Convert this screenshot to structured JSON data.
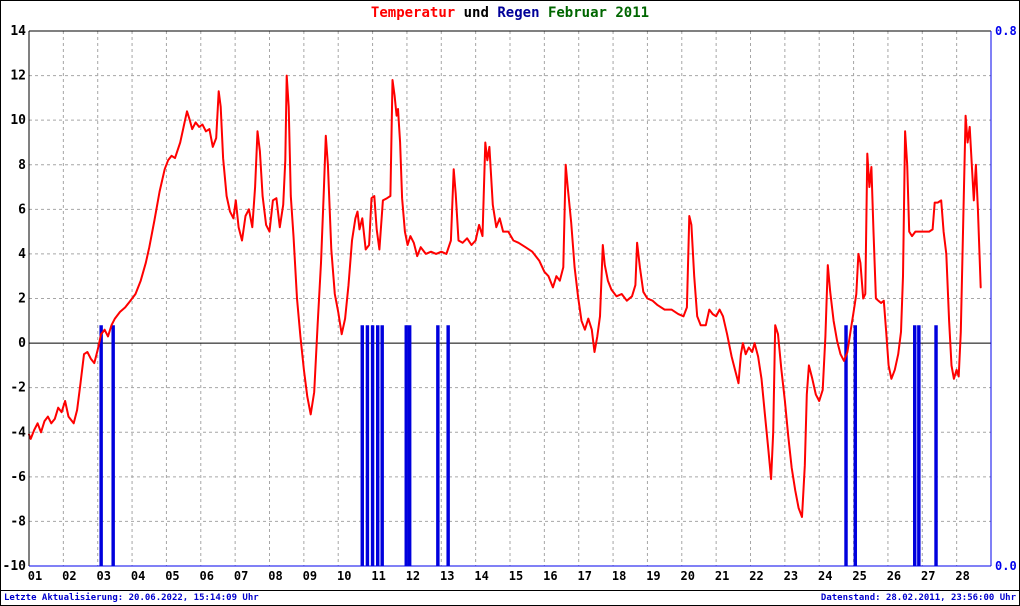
{
  "title": {
    "full": "Temperatur und Regen Februar 2011",
    "parts": [
      {
        "text": "Temperatur",
        "color": "#ff0000"
      },
      {
        "text": " und ",
        "color": "#000000"
      },
      {
        "text": "Regen",
        "color": "#000099"
      },
      {
        "text": " Februar 2011",
        "color": "#006600"
      }
    ]
  },
  "footer": {
    "left": "Letzte Aktualisierung: 20.06.2022, 15:14:09 Uhr",
    "right": "Datenstand: 28.02.2011, 23:56:00 Uhr"
  },
  "colors": {
    "temperature_line": "#ff0000",
    "rain_bar": "#0000dd",
    "grid": "#a6a6a6",
    "axis_left_top": "#000000",
    "axis_right_bottom": "#0000ee",
    "right_axis_labels": "#0000ee",
    "footer_text": "#0000cc",
    "zero_line": "#000000"
  },
  "chart_data": {
    "type": "line+bar",
    "title": "Temperatur und Regen Februar 2011",
    "grid": true,
    "legend": "none",
    "x_axis": {
      "label": "",
      "range": [
        1,
        29
      ],
      "ticks": [
        "01",
        "02",
        "03",
        "04",
        "05",
        "06",
        "07",
        "08",
        "09",
        "10",
        "11",
        "12",
        "13",
        "14",
        "15",
        "16",
        "17",
        "18",
        "19",
        "20",
        "21",
        "22",
        "23",
        "24",
        "25",
        "26",
        "27",
        "28"
      ]
    },
    "y_left": {
      "label": "Temperatur",
      "min": -10,
      "max": 14,
      "tick_step": 2,
      "color": "#000000"
    },
    "y_right": {
      "label": "Regen",
      "min": 0,
      "max": 0.8,
      "color": "#0000ee",
      "labels": [
        {
          "value": 0.8,
          "text": "0.8"
        },
        {
          "value": 0.0,
          "text": "0.0"
        }
      ]
    },
    "series": [
      {
        "name": "Temperatur",
        "type": "line",
        "color": "#ff0000",
        "points": [
          [
            1.0,
            -4.1
          ],
          [
            1.05,
            -4.3
          ],
          [
            1.15,
            -3.9
          ],
          [
            1.25,
            -3.6
          ],
          [
            1.35,
            -4.0
          ],
          [
            1.45,
            -3.5
          ],
          [
            1.55,
            -3.3
          ],
          [
            1.65,
            -3.6
          ],
          [
            1.75,
            -3.4
          ],
          [
            1.85,
            -2.9
          ],
          [
            1.95,
            -3.1
          ],
          [
            2.05,
            -2.6
          ],
          [
            2.15,
            -3.3
          ],
          [
            2.3,
            -3.6
          ],
          [
            2.4,
            -3.0
          ],
          [
            2.5,
            -1.8
          ],
          [
            2.6,
            -0.5
          ],
          [
            2.7,
            -0.4
          ],
          [
            2.8,
            -0.7
          ],
          [
            2.9,
            -0.9
          ],
          [
            3.0,
            -0.3
          ],
          [
            3.1,
            0.4
          ],
          [
            3.2,
            0.6
          ],
          [
            3.3,
            0.3
          ],
          [
            3.4,
            0.8
          ],
          [
            3.5,
            1.1
          ],
          [
            3.65,
            1.4
          ],
          [
            3.8,
            1.6
          ],
          [
            3.95,
            1.9
          ],
          [
            4.1,
            2.2
          ],
          [
            4.25,
            2.8
          ],
          [
            4.4,
            3.6
          ],
          [
            4.5,
            4.3
          ],
          [
            4.65,
            5.5
          ],
          [
            4.8,
            6.8
          ],
          [
            4.95,
            7.8
          ],
          [
            5.05,
            8.2
          ],
          [
            5.15,
            8.4
          ],
          [
            5.25,
            8.3
          ],
          [
            5.4,
            9.0
          ],
          [
            5.5,
            9.7
          ],
          [
            5.6,
            10.4
          ],
          [
            5.68,
            10.0
          ],
          [
            5.75,
            9.6
          ],
          [
            5.85,
            9.9
          ],
          [
            5.95,
            9.7
          ],
          [
            6.05,
            9.8
          ],
          [
            6.15,
            9.5
          ],
          [
            6.25,
            9.6
          ],
          [
            6.35,
            8.8
          ],
          [
            6.45,
            9.2
          ],
          [
            6.52,
            11.3
          ],
          [
            6.58,
            10.6
          ],
          [
            6.65,
            8.3
          ],
          [
            6.75,
            6.6
          ],
          [
            6.85,
            5.9
          ],
          [
            6.95,
            5.6
          ],
          [
            7.02,
            6.4
          ],
          [
            7.1,
            5.2
          ],
          [
            7.2,
            4.6
          ],
          [
            7.3,
            5.7
          ],
          [
            7.4,
            6.0
          ],
          [
            7.5,
            5.2
          ],
          [
            7.58,
            7.0
          ],
          [
            7.65,
            9.5
          ],
          [
            7.72,
            8.6
          ],
          [
            7.8,
            6.6
          ],
          [
            7.9,
            5.3
          ],
          [
            8.0,
            5.0
          ],
          [
            8.1,
            6.4
          ],
          [
            8.2,
            6.5
          ],
          [
            8.3,
            5.2
          ],
          [
            8.4,
            6.2
          ],
          [
            8.46,
            8.2
          ],
          [
            8.5,
            12.0
          ],
          [
            8.56,
            10.6
          ],
          [
            8.62,
            6.6
          ],
          [
            8.7,
            4.8
          ],
          [
            8.8,
            2.0
          ],
          [
            8.9,
            0.3
          ],
          [
            9.0,
            -1.2
          ],
          [
            9.1,
            -2.4
          ],
          [
            9.2,
            -3.2
          ],
          [
            9.3,
            -2.2
          ],
          [
            9.4,
            0.8
          ],
          [
            9.5,
            3.6
          ],
          [
            9.58,
            6.8
          ],
          [
            9.64,
            9.3
          ],
          [
            9.7,
            8.0
          ],
          [
            9.8,
            4.2
          ],
          [
            9.9,
            2.2
          ],
          [
            10.0,
            1.4
          ],
          [
            10.1,
            0.4
          ],
          [
            10.2,
            1.1
          ],
          [
            10.3,
            2.6
          ],
          [
            10.4,
            4.6
          ],
          [
            10.5,
            5.6
          ],
          [
            10.56,
            5.9
          ],
          [
            10.62,
            5.1
          ],
          [
            10.7,
            5.6
          ],
          [
            10.8,
            4.2
          ],
          [
            10.9,
            4.4
          ],
          [
            10.97,
            6.5
          ],
          [
            11.05,
            6.6
          ],
          [
            11.12,
            5.1
          ],
          [
            11.2,
            4.2
          ],
          [
            11.3,
            6.4
          ],
          [
            11.42,
            6.5
          ],
          [
            11.52,
            6.6
          ],
          [
            11.58,
            11.8
          ],
          [
            11.64,
            11.1
          ],
          [
            11.7,
            10.2
          ],
          [
            11.74,
            10.5
          ],
          [
            11.8,
            9.0
          ],
          [
            11.86,
            6.5
          ],
          [
            11.94,
            5.0
          ],
          [
            12.02,
            4.4
          ],
          [
            12.1,
            4.8
          ],
          [
            12.2,
            4.5
          ],
          [
            12.3,
            3.9
          ],
          [
            12.4,
            4.3
          ],
          [
            12.55,
            4.0
          ],
          [
            12.7,
            4.1
          ],
          [
            12.85,
            4.0
          ],
          [
            13.0,
            4.1
          ],
          [
            13.15,
            4.0
          ],
          [
            13.28,
            4.6
          ],
          [
            13.36,
            7.8
          ],
          [
            13.42,
            6.7
          ],
          [
            13.5,
            4.6
          ],
          [
            13.62,
            4.5
          ],
          [
            13.75,
            4.7
          ],
          [
            13.88,
            4.4
          ],
          [
            14.0,
            4.6
          ],
          [
            14.1,
            5.3
          ],
          [
            14.2,
            4.8
          ],
          [
            14.28,
            9.0
          ],
          [
            14.34,
            8.2
          ],
          [
            14.4,
            8.8
          ],
          [
            14.5,
            6.2
          ],
          [
            14.6,
            5.2
          ],
          [
            14.7,
            5.6
          ],
          [
            14.8,
            5.0
          ],
          [
            14.95,
            5.0
          ],
          [
            15.1,
            4.6
          ],
          [
            15.25,
            4.5
          ],
          [
            15.45,
            4.3
          ],
          [
            15.65,
            4.1
          ],
          [
            15.85,
            3.7
          ],
          [
            16.0,
            3.2
          ],
          [
            16.12,
            3.0
          ],
          [
            16.25,
            2.5
          ],
          [
            16.35,
            3.0
          ],
          [
            16.45,
            2.8
          ],
          [
            16.55,
            3.4
          ],
          [
            16.62,
            8.0
          ],
          [
            16.68,
            7.0
          ],
          [
            16.78,
            5.4
          ],
          [
            16.88,
            3.4
          ],
          [
            16.98,
            2.1
          ],
          [
            17.08,
            1.0
          ],
          [
            17.18,
            0.6
          ],
          [
            17.28,
            1.1
          ],
          [
            17.38,
            0.6
          ],
          [
            17.46,
            -0.4
          ],
          [
            17.54,
            0.3
          ],
          [
            17.62,
            1.2
          ],
          [
            17.7,
            4.4
          ],
          [
            17.76,
            3.5
          ],
          [
            17.85,
            2.8
          ],
          [
            17.95,
            2.4
          ],
          [
            18.1,
            2.1
          ],
          [
            18.25,
            2.2
          ],
          [
            18.4,
            1.9
          ],
          [
            18.55,
            2.1
          ],
          [
            18.65,
            2.6
          ],
          [
            18.7,
            4.5
          ],
          [
            18.78,
            3.4
          ],
          [
            18.88,
            2.3
          ],
          [
            19.0,
            2.0
          ],
          [
            19.15,
            1.9
          ],
          [
            19.3,
            1.7
          ],
          [
            19.5,
            1.5
          ],
          [
            19.7,
            1.5
          ],
          [
            19.9,
            1.3
          ],
          [
            20.05,
            1.2
          ],
          [
            20.15,
            1.6
          ],
          [
            20.22,
            5.7
          ],
          [
            20.28,
            5.3
          ],
          [
            20.36,
            3.0
          ],
          [
            20.45,
            1.2
          ],
          [
            20.55,
            0.8
          ],
          [
            20.7,
            0.8
          ],
          [
            20.8,
            1.5
          ],
          [
            20.9,
            1.3
          ],
          [
            21.0,
            1.2
          ],
          [
            21.1,
            1.5
          ],
          [
            21.2,
            1.2
          ],
          [
            21.32,
            0.4
          ],
          [
            21.45,
            -0.6
          ],
          [
            21.55,
            -1.2
          ],
          [
            21.65,
            -1.8
          ],
          [
            21.72,
            -0.5
          ],
          [
            21.78,
            0.0
          ],
          [
            21.86,
            -0.5
          ],
          [
            21.95,
            -0.2
          ],
          [
            22.05,
            -0.4
          ],
          [
            22.12,
            0.0
          ],
          [
            22.22,
            -0.6
          ],
          [
            22.32,
            -1.6
          ],
          [
            22.42,
            -3.2
          ],
          [
            22.52,
            -4.8
          ],
          [
            22.6,
            -6.1
          ],
          [
            22.66,
            -4.0
          ],
          [
            22.72,
            0.8
          ],
          [
            22.8,
            0.4
          ],
          [
            22.9,
            -1.2
          ],
          [
            23.0,
            -2.6
          ],
          [
            23.1,
            -4.2
          ],
          [
            23.2,
            -5.6
          ],
          [
            23.3,
            -6.6
          ],
          [
            23.4,
            -7.4
          ],
          [
            23.5,
            -7.8
          ],
          [
            23.58,
            -5.5
          ],
          [
            23.64,
            -2.3
          ],
          [
            23.7,
            -1.0
          ],
          [
            23.8,
            -1.6
          ],
          [
            23.9,
            -2.3
          ],
          [
            24.0,
            -2.6
          ],
          [
            24.1,
            -2.1
          ],
          [
            24.18,
            0.3
          ],
          [
            24.25,
            3.5
          ],
          [
            24.32,
            2.3
          ],
          [
            24.42,
            1.0
          ],
          [
            24.52,
            0.1
          ],
          [
            24.62,
            -0.5
          ],
          [
            24.72,
            -0.8
          ],
          [
            24.82,
            -0.4
          ],
          [
            24.92,
            0.6
          ],
          [
            25.02,
            1.6
          ],
          [
            25.08,
            2.2
          ],
          [
            25.14,
            4.0
          ],
          [
            25.2,
            3.6
          ],
          [
            25.28,
            2.0
          ],
          [
            25.34,
            2.2
          ],
          [
            25.4,
            8.5
          ],
          [
            25.46,
            7.0
          ],
          [
            25.52,
            7.9
          ],
          [
            25.58,
            5.0
          ],
          [
            25.65,
            2.0
          ],
          [
            25.72,
            1.9
          ],
          [
            25.8,
            1.8
          ],
          [
            25.88,
            1.9
          ],
          [
            25.95,
            0.5
          ],
          [
            26.02,
            -1.0
          ],
          [
            26.1,
            -1.6
          ],
          [
            26.2,
            -1.2
          ],
          [
            26.3,
            -0.5
          ],
          [
            26.38,
            0.5
          ],
          [
            26.44,
            3.0
          ],
          [
            26.5,
            9.5
          ],
          [
            26.56,
            8.0
          ],
          [
            26.62,
            5.0
          ],
          [
            26.7,
            4.8
          ],
          [
            26.8,
            5.0
          ],
          [
            26.9,
            5.0
          ],
          [
            27.0,
            5.0
          ],
          [
            27.1,
            5.0
          ],
          [
            27.2,
            5.0
          ],
          [
            27.3,
            5.1
          ],
          [
            27.36,
            6.3
          ],
          [
            27.45,
            6.3
          ],
          [
            27.55,
            6.4
          ],
          [
            27.62,
            5.0
          ],
          [
            27.7,
            4.0
          ],
          [
            27.78,
            1.0
          ],
          [
            27.85,
            -1.0
          ],
          [
            27.92,
            -1.6
          ],
          [
            28.0,
            -1.2
          ],
          [
            28.06,
            -1.5
          ],
          [
            28.12,
            0.5
          ],
          [
            28.2,
            6.0
          ],
          [
            28.26,
            10.2
          ],
          [
            28.32,
            9.0
          ],
          [
            28.38,
            9.7
          ],
          [
            28.44,
            8.0
          ],
          [
            28.5,
            6.4
          ],
          [
            28.56,
            8.0
          ],
          [
            28.62,
            6.0
          ],
          [
            28.7,
            2.5
          ]
        ]
      },
      {
        "name": "Regen",
        "type": "bar",
        "color": "#0000dd",
        "bar_value": 0.36,
        "bar_width_days": 0.1,
        "bar_days": [
          3.1,
          3.45,
          10.7,
          10.85,
          11.0,
          11.15,
          11.28,
          11.98,
          12.08,
          12.9,
          13.2,
          24.78,
          25.05,
          26.78,
          26.9,
          27.4
        ]
      }
    ]
  }
}
